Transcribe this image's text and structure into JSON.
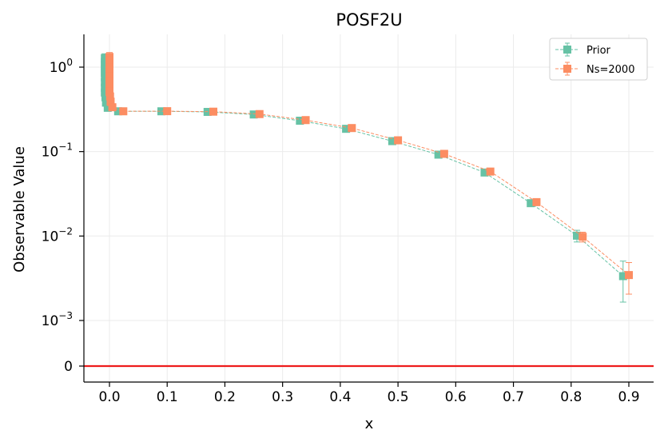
{
  "chart_data": {
    "type": "scatter",
    "title": "POSF2U",
    "xlabel": "x",
    "ylabel": "Observable Value",
    "x_ticks": [
      "0.0",
      "0.1",
      "0.2",
      "0.3",
      "0.4",
      "0.5",
      "0.6",
      "0.7",
      "0.8",
      "0.9"
    ],
    "y_ticks": [
      {
        "value": 1,
        "base": "10",
        "exp": "0"
      },
      {
        "value": 0.1,
        "base": "10",
        "exp": "−1"
      },
      {
        "value": 0.01,
        "base": "10",
        "exp": "−2"
      },
      {
        "value": 0.001,
        "base": "10",
        "exp": "−3"
      },
      {
        "value": 0,
        "label": "0"
      }
    ],
    "yscale": "symlog",
    "linthresh": 0.0004,
    "xlim": [
      -0.045,
      0.945
    ],
    "grid": true,
    "legend_position": "top-right",
    "reference_line": {
      "y": 0,
      "color": "#ee1c1c"
    },
    "series": [
      {
        "name": "Prior",
        "color": "#66c2a5",
        "points": [
          {
            "x": -0.008,
            "y": 1.28,
            "err": 0.16
          },
          {
            "x": -0.008,
            "y": 1.15,
            "err": 0.14
          },
          {
            "x": -0.008,
            "y": 1.05,
            "err": 0.12
          },
          {
            "x": -0.008,
            "y": 0.95,
            "err": 0.1
          },
          {
            "x": -0.008,
            "y": 0.86,
            "err": 0.09
          },
          {
            "x": -0.008,
            "y": 0.76,
            "err": 0.08
          },
          {
            "x": -0.008,
            "y": 0.66,
            "err": 0.07
          },
          {
            "x": -0.008,
            "y": 0.57,
            "err": 0.06
          },
          {
            "x": -0.008,
            "y": 0.5,
            "err": 0.05
          },
          {
            "x": -0.007,
            "y": 0.44,
            "err": 0.04
          },
          {
            "x": -0.006,
            "y": 0.38,
            "err": 0.035
          },
          {
            "x": -0.003,
            "y": 0.33,
            "err": 0.025
          },
          {
            "x": 0.015,
            "y": 0.3,
            "err": 0.01
          },
          {
            "x": 0.09,
            "y": 0.3,
            "err": 0.008
          },
          {
            "x": 0.17,
            "y": 0.295,
            "err": 0.007
          },
          {
            "x": 0.25,
            "y": 0.275,
            "err": 0.006
          },
          {
            "x": 0.33,
            "y": 0.232,
            "err": 0.005
          },
          {
            "x": 0.41,
            "y": 0.186,
            "err": 0.004
          },
          {
            "x": 0.49,
            "y": 0.133,
            "err": 0.003
          },
          {
            "x": 0.57,
            "y": 0.092,
            "err": 0.0025
          },
          {
            "x": 0.65,
            "y": 0.0565,
            "err": 0.0015
          },
          {
            "x": 0.73,
            "y": 0.0245,
            "err": 0.001
          },
          {
            "x": 0.81,
            "y": 0.0101,
            "err": 0.0016
          },
          {
            "x": 0.89,
            "y": 0.00335,
            "err": 0.0017
          }
        ]
      },
      {
        "name": "Ns=2000",
        "color": "#fc8d62",
        "points": [
          {
            "x": 0.0,
            "y": 1.32,
            "err": 0.17
          },
          {
            "x": 0.0,
            "y": 1.2,
            "err": 0.15
          },
          {
            "x": 0.0,
            "y": 1.08,
            "err": 0.13
          },
          {
            "x": 0.0,
            "y": 0.97,
            "err": 0.11
          },
          {
            "x": 0.0,
            "y": 0.87,
            "err": 0.1
          },
          {
            "x": 0.0,
            "y": 0.77,
            "err": 0.09
          },
          {
            "x": 0.0,
            "y": 0.67,
            "err": 0.08
          },
          {
            "x": 0.0,
            "y": 0.58,
            "err": 0.07
          },
          {
            "x": 0.0,
            "y": 0.51,
            "err": 0.06
          },
          {
            "x": 0.001,
            "y": 0.45,
            "err": 0.05
          },
          {
            "x": 0.002,
            "y": 0.39,
            "err": 0.04
          },
          {
            "x": 0.005,
            "y": 0.335,
            "err": 0.03
          },
          {
            "x": 0.024,
            "y": 0.3,
            "err": 0.01
          },
          {
            "x": 0.1,
            "y": 0.301,
            "err": 0.008
          },
          {
            "x": 0.18,
            "y": 0.297,
            "err": 0.007
          },
          {
            "x": 0.26,
            "y": 0.278,
            "err": 0.006
          },
          {
            "x": 0.34,
            "y": 0.236,
            "err": 0.005
          },
          {
            "x": 0.42,
            "y": 0.19,
            "err": 0.004
          },
          {
            "x": 0.5,
            "y": 0.136,
            "err": 0.003
          },
          {
            "x": 0.58,
            "y": 0.094,
            "err": 0.0025
          },
          {
            "x": 0.66,
            "y": 0.058,
            "err": 0.0015
          },
          {
            "x": 0.74,
            "y": 0.0252,
            "err": 0.001
          },
          {
            "x": 0.82,
            "y": 0.0098,
            "err": 0.0013
          },
          {
            "x": 0.9,
            "y": 0.00345,
            "err": 0.0014
          }
        ]
      }
    ]
  }
}
